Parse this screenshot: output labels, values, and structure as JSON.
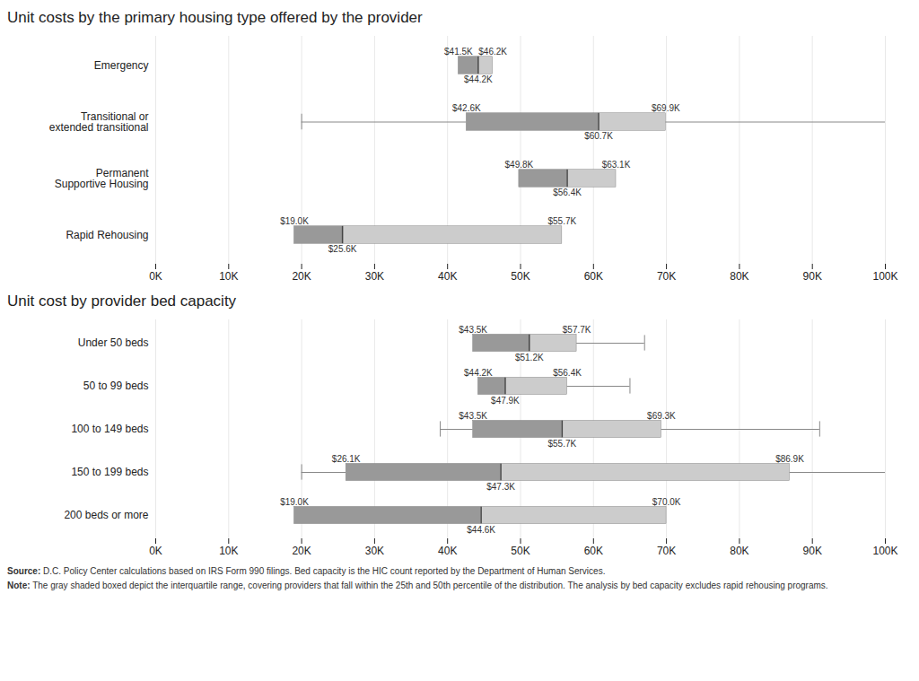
{
  "chart_data": [
    {
      "type": "box",
      "title": "Unit costs by the primary housing type offered by the provider",
      "orientation": "horizontal",
      "categories": [
        "Emergency",
        "Transitional or\nextended transitional",
        "Permanent\nSupportive Housing",
        "Rapid Rehousing"
      ],
      "q1": [
        41500,
        42600,
        49800,
        19000
      ],
      "median": [
        44200,
        60700,
        56400,
        25600
      ],
      "q3": [
        46200,
        69900,
        63100,
        55700
      ],
      "whisker_low": [
        null,
        20000,
        null,
        null
      ],
      "whisker_high": [
        null,
        100000,
        null,
        null
      ],
      "data_labels": true,
      "value_labels": {
        "q1": [
          "$41.5K",
          "$42.6K",
          "$49.8K",
          "$19.0K"
        ],
        "median": [
          "$44.2K",
          "$60.7K",
          "$56.4K",
          "$25.6K"
        ],
        "q3": [
          "$46.2K",
          "$69.9K",
          "$63.1K",
          "$55.7K"
        ]
      },
      "colors": [
        "#999999",
        "#cccccc"
      ],
      "xlim": [
        0,
        100000
      ],
      "xticks": [
        {
          "value": 0,
          "label": "0K"
        },
        {
          "value": 10000,
          "label": "10K"
        },
        {
          "value": 20000,
          "label": "20K"
        },
        {
          "value": 30000,
          "label": "30K"
        },
        {
          "value": 40000,
          "label": "40K"
        },
        {
          "value": 50000,
          "label": "50K"
        },
        {
          "value": 60000,
          "label": "60K"
        },
        {
          "value": 70000,
          "label": "70K"
        },
        {
          "value": 80000,
          "label": "80K"
        },
        {
          "value": 90000,
          "label": "90K"
        },
        {
          "value": 100000,
          "label": "100K"
        }
      ],
      "grid": true
    },
    {
      "type": "box",
      "title": "Unit cost by provider bed capacity",
      "orientation": "horizontal",
      "categories": [
        "Under 50 beds",
        "50 to 99 beds",
        "100 to 149 beds",
        "150 to 199 beds",
        "200 beds or more"
      ],
      "q1": [
        43500,
        44200,
        43500,
        26100,
        19000
      ],
      "median": [
        51200,
        47900,
        55700,
        47300,
        44600
      ],
      "q3": [
        57700,
        56400,
        69300,
        86900,
        70000
      ],
      "whisker_low": [
        null,
        null,
        39000,
        20000,
        null
      ],
      "whisker_high": [
        67000,
        65000,
        91000,
        100000,
        null
      ],
      "data_labels": true,
      "value_labels": {
        "q1": [
          "$43.5K",
          "$44.2K",
          "$43.5K",
          "$26.1K",
          "$19.0K"
        ],
        "median": [
          "$51.2K",
          "$47.9K",
          "$55.7K",
          "$47.3K",
          "$44.6K"
        ],
        "q3": [
          "$57.7K",
          "$56.4K",
          "$69.3K",
          "$86.9K",
          "$70.0K"
        ]
      },
      "colors": [
        "#999999",
        "#cccccc"
      ],
      "xlim": [
        0,
        100000
      ],
      "xticks": [
        {
          "value": 0,
          "label": "0K"
        },
        {
          "value": 10000,
          "label": "10K"
        },
        {
          "value": 20000,
          "label": "20K"
        },
        {
          "value": 30000,
          "label": "30K"
        },
        {
          "value": 40000,
          "label": "40K"
        },
        {
          "value": 50000,
          "label": "50K"
        },
        {
          "value": 60000,
          "label": "60K"
        },
        {
          "value": 70000,
          "label": "70K"
        },
        {
          "value": 80000,
          "label": "80K"
        },
        {
          "value": 90000,
          "label": "90K"
        },
        {
          "value": 100000,
          "label": "100K"
        }
      ],
      "grid": true
    }
  ],
  "annotations": [
    "Source: D.C. Policy Center calculations based on IRS Form 990 filings. Bed capacity is the HIC count reported by the Department of Human Services.",
    "Note: The gray shaded boxed depict the interquartile range, covering providers that fall within the 25th and 50th percentile of the distribution. The analysis by bed capacity excludes rapid rehousing programs."
  ]
}
